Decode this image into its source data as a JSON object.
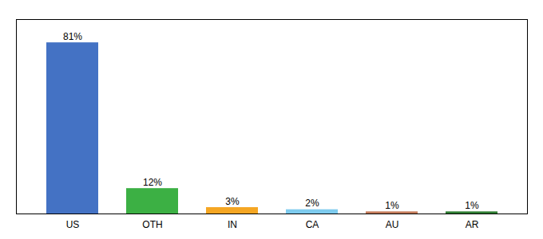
{
  "chart_data": {
    "type": "bar",
    "categories": [
      "US",
      "OTH",
      "IN",
      "CA",
      "AU",
      "AR"
    ],
    "values": [
      81,
      12,
      3,
      2,
      1,
      1
    ],
    "value_labels": [
      "81%",
      "12%",
      "3%",
      "2%",
      "1%",
      "1%"
    ],
    "data_labels": true,
    "colors": [
      "#4472c4",
      "#3cb044",
      "#f5a623",
      "#7ecbee",
      "#c47b5a",
      "#2e7d32"
    ],
    "ylim": [
      0,
      92
    ],
    "tick_labels": "x"
  }
}
